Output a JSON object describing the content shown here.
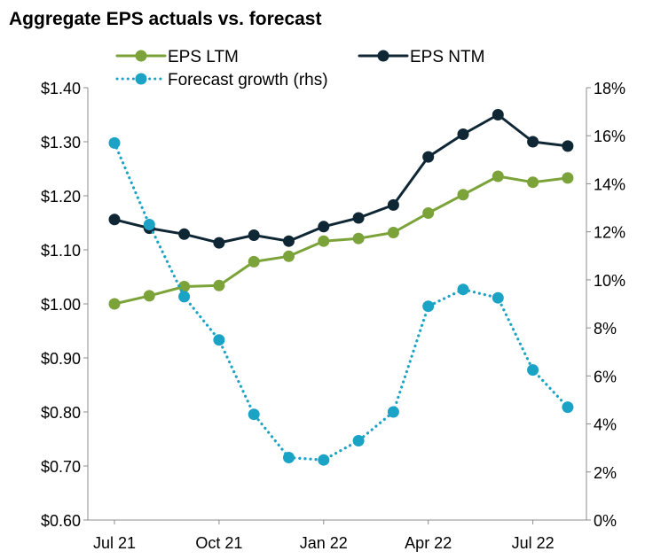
{
  "chart_data": {
    "type": "line",
    "title": "Aggregate EPS actuals vs. forecast",
    "x": [
      "Jul 21",
      "Aug 21",
      "Sep 21",
      "Oct 21",
      "Nov 21",
      "Dec 21",
      "Jan 22",
      "Feb 22",
      "Mar 22",
      "Apr 22",
      "May 22",
      "Jun 22",
      "Jul 22",
      "Aug 22"
    ],
    "x_tick_labels": [
      "Jul 21",
      "Oct 21",
      "Jan 22",
      "Apr 22",
      "Jul 22"
    ],
    "y_left_tick_labels": [
      "$1.40",
      "$1.30",
      "$1.20",
      "$1.10",
      "$1.00",
      "$0.90",
      "$0.80",
      "$0.70",
      "$0.60"
    ],
    "y_right_tick_labels": [
      "18%",
      "16%",
      "14%",
      "12%",
      "10%",
      "8%",
      "6%",
      "4%",
      "2%",
      "0%"
    ],
    "ylim_left": [
      0.6,
      1.4
    ],
    "ylim_right": [
      0,
      18
    ],
    "series": [
      {
        "name": "EPS LTM",
        "axis": "left",
        "color": "#7ba33a",
        "style": "solid",
        "values": [
          1.0,
          1.015,
          1.032,
          1.034,
          1.078,
          1.088,
          1.116,
          1.121,
          1.132,
          1.168,
          1.202,
          1.236,
          1.225,
          1.233
        ]
      },
      {
        "name": "EPS NTM",
        "axis": "left",
        "color": "#0f2635",
        "style": "solid",
        "values": [
          1.156,
          1.14,
          1.129,
          1.113,
          1.127,
          1.116,
          1.143,
          1.159,
          1.183,
          1.272,
          1.314,
          1.35,
          1.3,
          1.292
        ]
      },
      {
        "name": "Forecast growth (rhs)",
        "axis": "right",
        "color": "#1ba3c6",
        "style": "dotted",
        "values": [
          15.7,
          12.3,
          9.3,
          7.5,
          4.4,
          2.6,
          2.5,
          3.3,
          4.5,
          8.9,
          9.6,
          9.25,
          6.25,
          4.7
        ]
      }
    ]
  }
}
